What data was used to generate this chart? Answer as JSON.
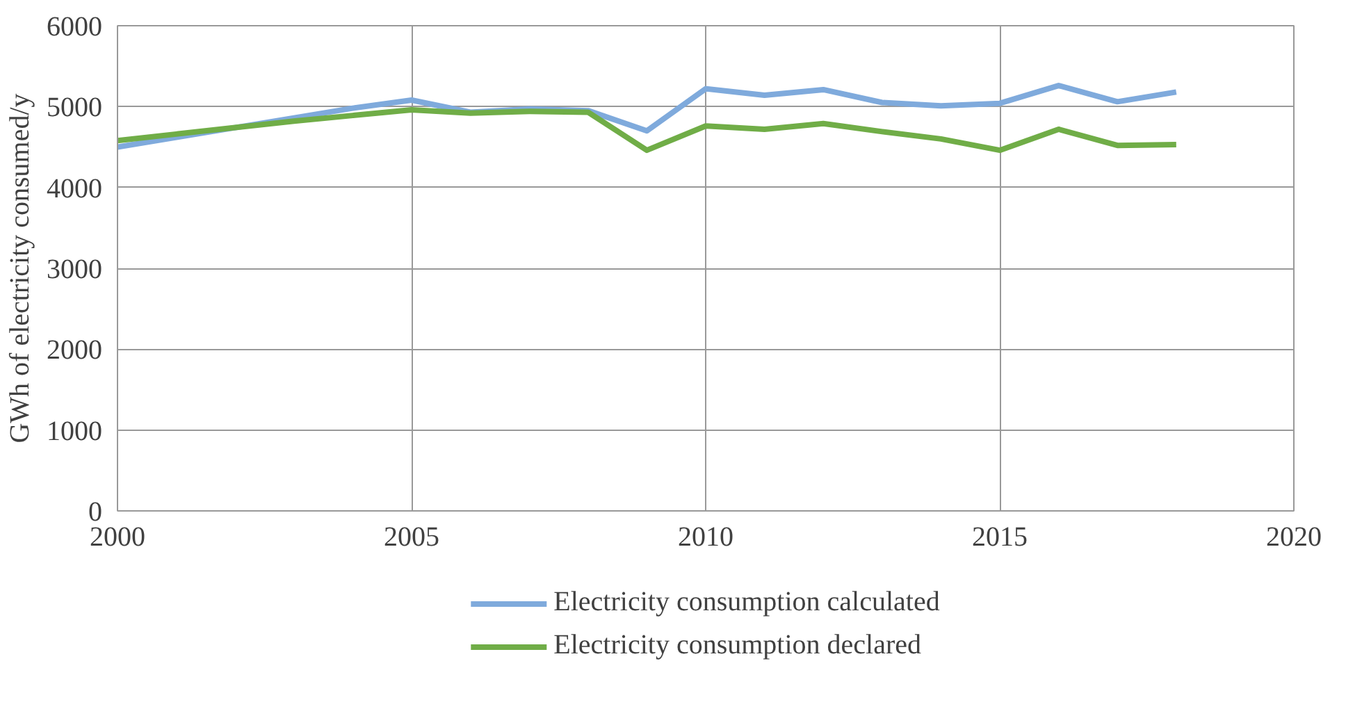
{
  "chart_data": {
    "type": "line",
    "ylabel": "GWh of electricity consumed/y",
    "x": [
      2000,
      2001,
      2002,
      2003,
      2004,
      2005,
      2006,
      2007,
      2008,
      2009,
      2010,
      2011,
      2012,
      2013,
      2014,
      2015,
      2016,
      2017,
      2018
    ],
    "series": [
      {
        "name": "Electricity consumption calculated",
        "color": "#7faadc",
        "values": [
          4500,
          4620,
          4740,
          4860,
          4980,
          5080,
          4930,
          4970,
          4950,
          4700,
          5220,
          5140,
          5210,
          5050,
          5010,
          5040,
          5260,
          5060,
          5180
        ]
      },
      {
        "name": "Electricity consumption declared",
        "color": "#70ad47",
        "values": [
          4580,
          4660,
          4740,
          4820,
          4890,
          4960,
          4920,
          4940,
          4930,
          4460,
          4760,
          4720,
          4790,
          4690,
          4600,
          4460,
          4720,
          4520,
          4530
        ]
      }
    ],
    "xlim": [
      2000,
      2020
    ],
    "xticks": [
      2000,
      2005,
      2010,
      2015,
      2020
    ],
    "ylim": [
      0,
      6000
    ],
    "yticks": [
      0,
      1000,
      2000,
      3000,
      4000,
      5000,
      6000
    ],
    "grid": true,
    "legend": "bottom",
    "marker": "none",
    "line_style": "solid"
  }
}
